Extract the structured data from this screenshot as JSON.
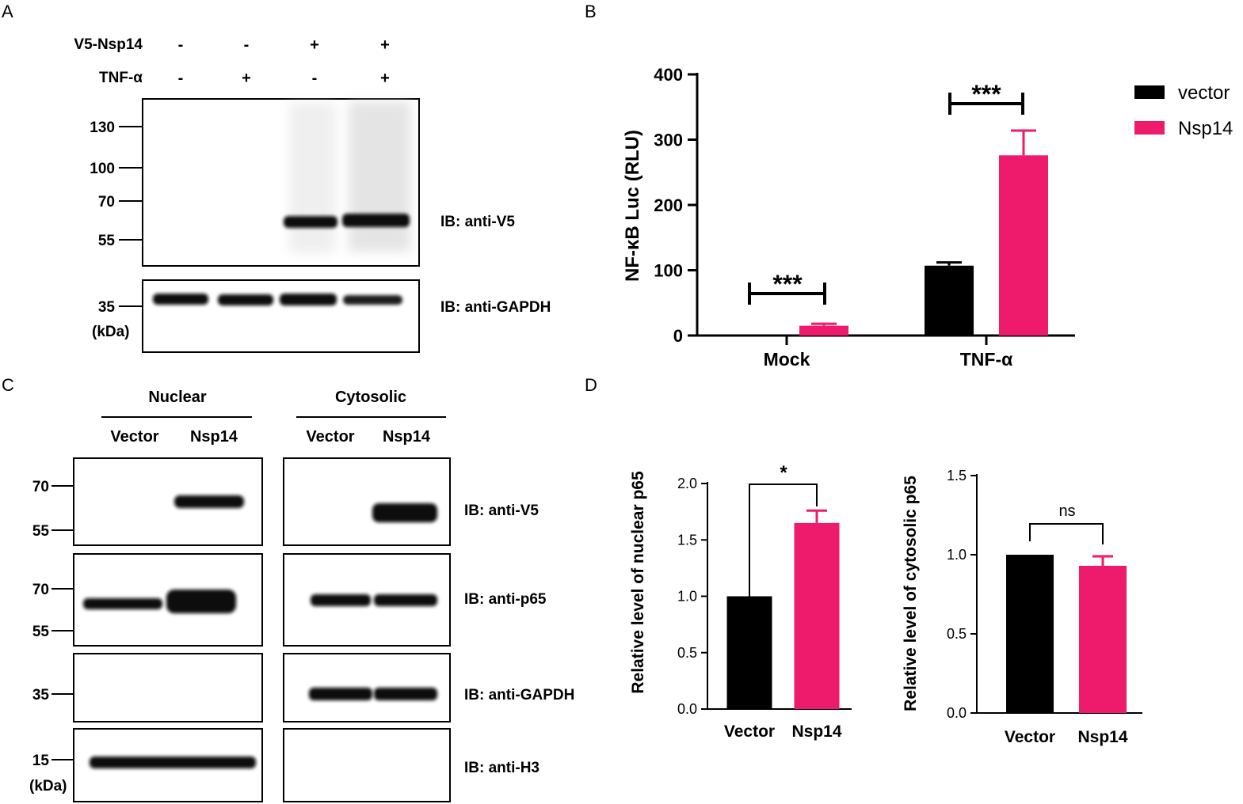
{
  "panel_a": {
    "letter": "A",
    "rows": [
      {
        "label": "V5-Nsp14",
        "signs": [
          "-",
          "-",
          "+",
          "+"
        ]
      },
      {
        "label": "TNF-α",
        "signs": [
          "-",
          "+",
          "-",
          "+"
        ]
      }
    ],
    "mw_top": [
      "130",
      "100",
      "70",
      "55"
    ],
    "mw_bottom": "35",
    "kda": "(kDa)",
    "ib_top": "IB: anti-V5",
    "ib_bottom": "IB: anti-GAPDH"
  },
  "panel_b": {
    "letter": "B",
    "ylabel": "NF-κB Luc (RLU)",
    "legend": [
      {
        "name": "vector",
        "color": "#000000"
      },
      {
        "name": "Nsp14",
        "color": "#EE1A6B"
      }
    ],
    "sig": [
      "***",
      "***"
    ]
  },
  "panel_c": {
    "letter": "C",
    "groups": [
      "Nuclear",
      "Cytosolic"
    ],
    "lanes": [
      "Vector",
      "Nsp14",
      "Vector",
      "Nsp14"
    ],
    "mw": [
      "70",
      "55",
      "70",
      "55",
      "35",
      "15"
    ],
    "kda": "(kDa)",
    "ib": [
      "IB: anti-V5",
      "IB: anti-p65",
      "IB: anti-GAPDH",
      "IB: anti-H3"
    ]
  },
  "panel_d": {
    "letter": "D",
    "left": {
      "ylabel": "Relative level of nuclear p65",
      "sig": "*"
    },
    "right": {
      "ylabel": "Relative level of cytosolic p65",
      "sig": "ns"
    }
  },
  "chart_data": [
    {
      "type": "bar",
      "panel": "B",
      "categories": [
        "Mock",
        "TNF-α"
      ],
      "series": [
        {
          "name": "vector",
          "values": [
            0,
            107
          ],
          "errors": [
            0,
            5
          ],
          "color": "#000000"
        },
        {
          "name": "Nsp14",
          "values": [
            15,
            276
          ],
          "errors": [
            3,
            38
          ],
          "color": "#EE1A6B"
        }
      ],
      "ylabel": "NF-κB Luc (RLU)",
      "ylim": [
        0,
        400
      ],
      "yticks": [
        0,
        100,
        200,
        300,
        400
      ],
      "legend": "right",
      "grid": false
    },
    {
      "type": "bar",
      "panel": "D-left",
      "categories": [
        "Vector",
        "Nsp14"
      ],
      "values": [
        1.0,
        1.65
      ],
      "errors": [
        0,
        0.11
      ],
      "colors": [
        "#000000",
        "#EE1A6B"
      ],
      "ylabel": "Relative level of nuclear p65",
      "ylim": [
        0,
        2.0
      ],
      "yticks": [
        "0.0",
        "0.5",
        "1.0",
        "1.5",
        "2.0"
      ],
      "grid": false
    },
    {
      "type": "bar",
      "panel": "D-right",
      "categories": [
        "Vector",
        "Nsp14"
      ],
      "values": [
        1.0,
        0.93
      ],
      "errors": [
        0,
        0.06
      ],
      "colors": [
        "#000000",
        "#EE1A6B"
      ],
      "ylabel": "Relative level of cytosolic p65",
      "ylim": [
        0,
        1.5
      ],
      "yticks": [
        "0.0",
        "0.5",
        "1.0",
        "1.5"
      ],
      "grid": false
    }
  ]
}
